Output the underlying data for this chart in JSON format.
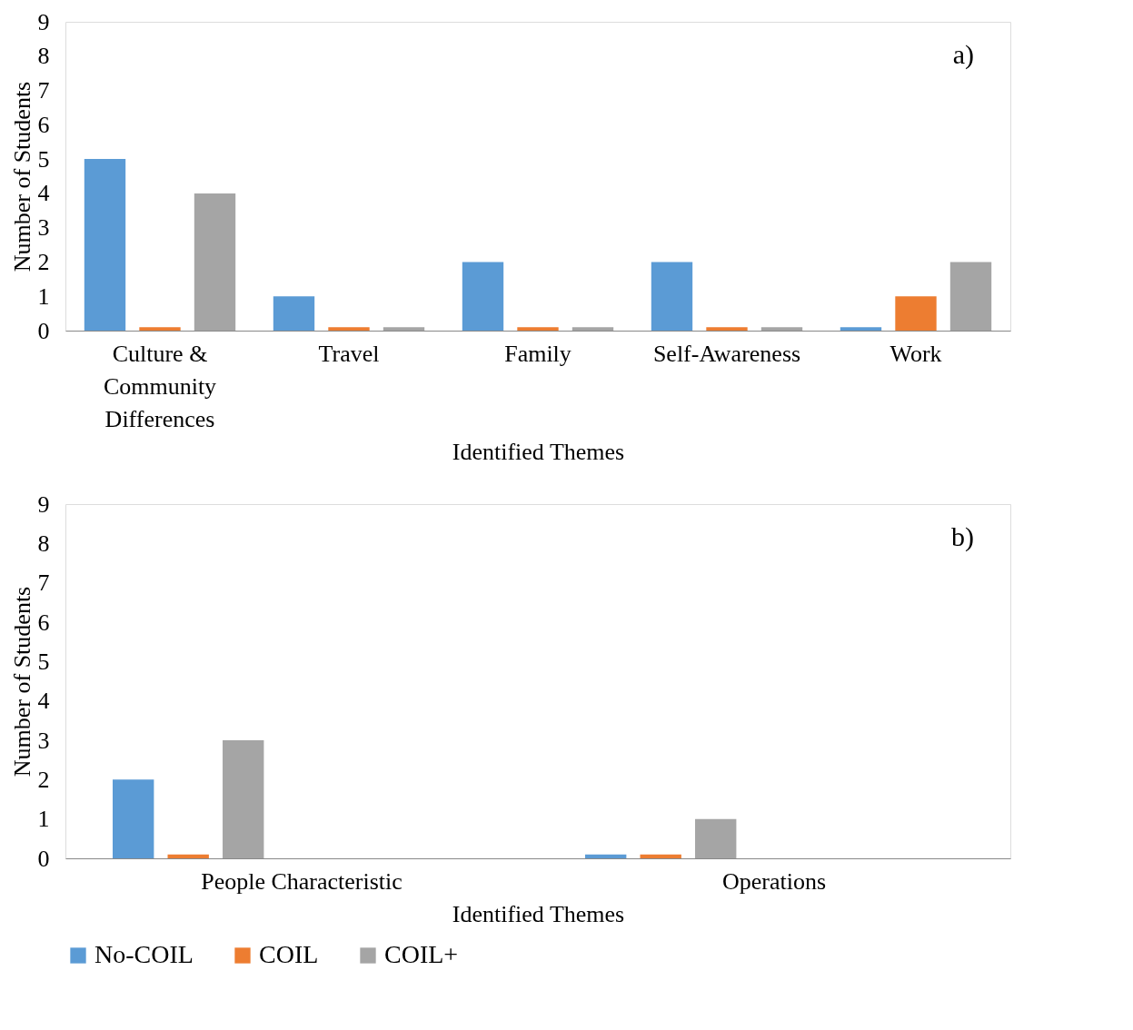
{
  "chart_data": [
    {
      "type": "bar",
      "categories": [
        "Culture & Community Differences",
        "Travel",
        "Family",
        "Self-Awareness",
        "Work"
      ],
      "xlabel": "Identified Themes",
      "ylabel": "Number of Students",
      "ylim": [
        0,
        9
      ],
      "yticks": [
        0,
        1,
        2,
        3,
        4,
        5,
        6,
        7,
        8,
        9
      ],
      "grid": false,
      "legend": "bottom",
      "annotations": [
        "a)"
      ],
      "series": [
        {
          "name": "No-COIL",
          "color": "#5b9bd5",
          "values": [
            5,
            1,
            2,
            2,
            0.1
          ]
        },
        {
          "name": "COIL",
          "color": "#ed7d31",
          "values": [
            0.1,
            0.1,
            0.1,
            0.1,
            1
          ]
        },
        {
          "name": "COIL+",
          "color": "#a5a5a5",
          "values": [
            4,
            0.1,
            0.1,
            0.1,
            2
          ]
        }
      ]
    },
    {
      "type": "bar",
      "categories": [
        "People Characteristic",
        "Operations"
      ],
      "xlabel": "Identified Themes",
      "ylabel": "Number of Students",
      "ylim": [
        0,
        9
      ],
      "yticks": [
        0,
        1,
        2,
        3,
        4,
        5,
        6,
        7,
        8,
        9
      ],
      "grid": false,
      "legend": "bottom",
      "annotations": [
        "b)"
      ],
      "series": [
        {
          "name": "No-COIL",
          "color": "#5b9bd5",
          "values": [
            2,
            0.1
          ]
        },
        {
          "name": "COIL",
          "color": "#ed7d31",
          "values": [
            0.1,
            0.1
          ]
        },
        {
          "name": "COIL+",
          "color": "#a5a5a5",
          "values": [
            3,
            1
          ]
        }
      ]
    }
  ]
}
